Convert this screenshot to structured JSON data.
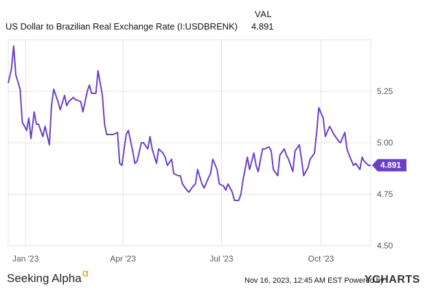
{
  "header": {
    "series_name": "US Dollar to Brazilian Real Exchange Rate (I:USDBRENK)",
    "val_label": "VAL",
    "val_value": "4.891"
  },
  "footer": {
    "brand": "Seeking Alpha",
    "brand_mark": "α",
    "timestamp": "Nov 16, 2023, 12:45 AM EST Powered by",
    "ycharts": "YCHARTS"
  },
  "colors": {
    "line": "#6a3fc8",
    "badge": "#6a3fc8",
    "grid": "#e3e3e3"
  },
  "chart_data": {
    "type": "line",
    "x_tick_labels": [
      "Jan '23",
      "Apr '23",
      "Jul '23",
      "Oct '23"
    ],
    "x_tick_dates": [
      "2023-01-01",
      "2023-04-01",
      "2023-07-01",
      "2023-10-01"
    ],
    "y_tick_labels": [
      "5.25",
      "5.00",
      "4.75",
      "4.50"
    ],
    "y_ticks": [
      5.25,
      5.0,
      4.75,
      4.5
    ],
    "ylim": [
      4.5,
      5.5
    ],
    "xlim": [
      "2022-12-16",
      "2023-11-16"
    ],
    "last_value_label": "4.891",
    "last_value": 4.891,
    "grid": true,
    "series": [
      {
        "x": [
          "2022-12-16",
          "2022-12-19",
          "2022-12-21",
          "2022-12-23",
          "2022-12-27",
          "2022-12-29",
          "2023-01-02",
          "2023-01-04",
          "2023-01-06",
          "2023-01-09",
          "2023-01-11",
          "2023-01-13",
          "2023-01-17",
          "2023-01-19",
          "2023-01-23",
          "2023-01-25",
          "2023-01-27",
          "2023-01-31",
          "2023-02-02",
          "2023-02-06",
          "2023-02-08",
          "2023-02-10",
          "2023-02-14",
          "2023-02-16",
          "2023-02-21",
          "2023-02-23",
          "2023-02-27",
          "2023-03-01",
          "2023-03-03",
          "2023-03-07",
          "2023-03-09",
          "2023-03-13",
          "2023-03-15",
          "2023-03-17",
          "2023-03-21",
          "2023-03-23",
          "2023-03-27",
          "2023-03-29",
          "2023-03-31",
          "2023-04-04",
          "2023-04-06",
          "2023-04-10",
          "2023-04-12",
          "2023-04-14",
          "2023-04-18",
          "2023-04-20",
          "2023-04-24",
          "2023-04-26",
          "2023-04-28",
          "2023-05-02",
          "2023-05-04",
          "2023-05-08",
          "2023-05-10",
          "2023-05-12",
          "2023-05-16",
          "2023-05-18",
          "2023-05-22",
          "2023-05-24",
          "2023-05-26",
          "2023-05-30",
          "2023-06-01",
          "2023-06-05",
          "2023-06-07",
          "2023-06-09",
          "2023-06-13",
          "2023-06-15",
          "2023-06-19",
          "2023-06-21",
          "2023-06-23",
          "2023-06-27",
          "2023-06-29",
          "2023-07-03",
          "2023-07-05",
          "2023-07-07",
          "2023-07-11",
          "2023-07-13",
          "2023-07-17",
          "2023-07-19",
          "2023-07-21",
          "2023-07-25",
          "2023-07-27",
          "2023-07-31",
          "2023-08-02",
          "2023-08-04",
          "2023-08-08",
          "2023-08-10",
          "2023-08-14",
          "2023-08-16",
          "2023-08-18",
          "2023-08-22",
          "2023-08-24",
          "2023-08-28",
          "2023-08-30",
          "2023-09-01",
          "2023-09-05",
          "2023-09-07",
          "2023-09-11",
          "2023-09-13",
          "2023-09-15",
          "2023-09-19",
          "2023-09-21",
          "2023-09-25",
          "2023-09-27",
          "2023-09-29",
          "2023-10-03",
          "2023-10-05",
          "2023-10-09",
          "2023-10-11",
          "2023-10-13",
          "2023-10-17",
          "2023-10-19",
          "2023-10-23",
          "2023-10-25",
          "2023-10-27",
          "2023-10-31",
          "2023-11-02",
          "2023-11-06",
          "2023-11-08",
          "2023-11-10",
          "2023-11-14",
          "2023-11-16"
        ],
        "y": [
          5.29,
          5.36,
          5.47,
          5.33,
          5.26,
          5.1,
          5.06,
          5.12,
          5.02,
          5.15,
          5.09,
          5.09,
          5.03,
          5.08,
          4.99,
          5.18,
          5.26,
          5.2,
          5.16,
          5.23,
          5.18,
          5.2,
          5.22,
          5.21,
          5.2,
          5.15,
          5.25,
          5.28,
          5.24,
          5.24,
          5.35,
          5.23,
          5.09,
          5.04,
          5.04,
          5.04,
          5.05,
          4.9,
          4.89,
          5.04,
          5.06,
          4.96,
          4.9,
          4.91,
          5.0,
          5.0,
          4.97,
          5.03,
          4.97,
          4.9,
          4.97,
          4.95,
          4.93,
          4.89,
          4.92,
          4.85,
          4.84,
          4.84,
          4.8,
          4.77,
          4.76,
          4.79,
          4.8,
          4.87,
          4.8,
          4.78,
          4.83,
          4.85,
          4.92,
          4.87,
          4.8,
          4.79,
          4.77,
          4.8,
          4.76,
          4.72,
          4.72,
          4.75,
          4.82,
          4.93,
          4.87,
          4.95,
          4.89,
          4.86,
          4.97,
          4.97,
          4.98,
          4.96,
          4.87,
          4.84,
          4.94,
          4.97,
          4.94,
          4.92,
          4.86,
          4.96,
          4.99,
          4.92,
          4.84,
          4.88,
          4.92,
          4.95,
          5.05,
          5.17,
          5.12,
          5.03,
          5.08,
          5.06,
          5.04,
          5.01,
          5.0,
          5.05,
          4.97,
          4.94,
          4.89,
          4.9,
          4.87,
          4.93,
          4.91,
          4.89,
          4.891
        ]
      }
    ]
  }
}
